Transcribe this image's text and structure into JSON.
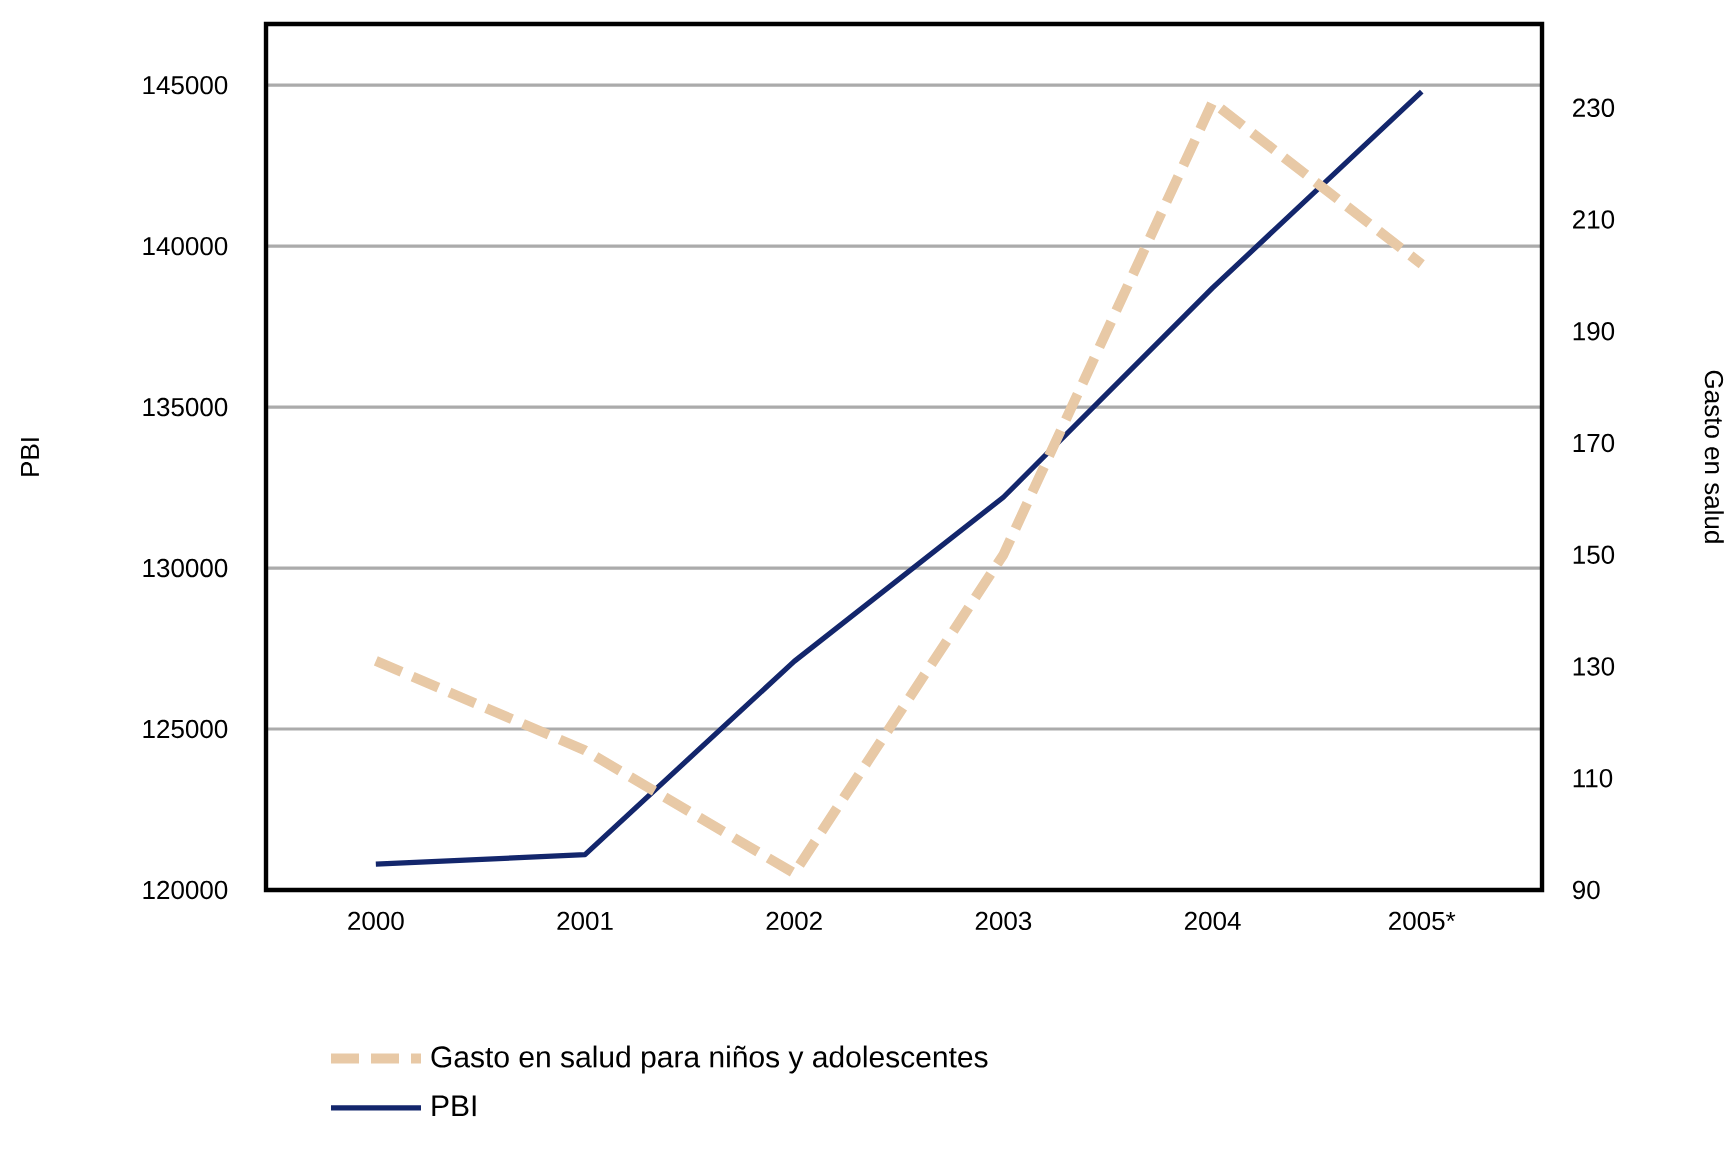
{
  "chart_data": {
    "type": "line",
    "categories": [
      "2000",
      "2001",
      "2002",
      "2003",
      "2004",
      "2005*"
    ],
    "ylabel": "PBI",
    "y2label": "Gasto en salud",
    "ylim": [
      120000,
      146900
    ],
    "yticks": [
      120000,
      125000,
      130000,
      135000,
      140000,
      145000
    ],
    "y2lim": [
      90,
      245
    ],
    "y2ticks": [
      90,
      110,
      130,
      150,
      170,
      190,
      210,
      230
    ],
    "grid": "y",
    "legend": "bottom",
    "series": [
      {
        "name": "Gasto en salud para niños y adolescentes",
        "color": "#e8c9a6",
        "axis": "y2",
        "line_style": "dashed",
        "values": [
          131,
          115,
          93,
          150,
          231,
          202
        ]
      },
      {
        "name": "PBI",
        "color": "#13266c",
        "line_style": "solid",
        "values": [
          120800,
          121100,
          127100,
          132200,
          138700,
          144800
        ]
      }
    ]
  }
}
